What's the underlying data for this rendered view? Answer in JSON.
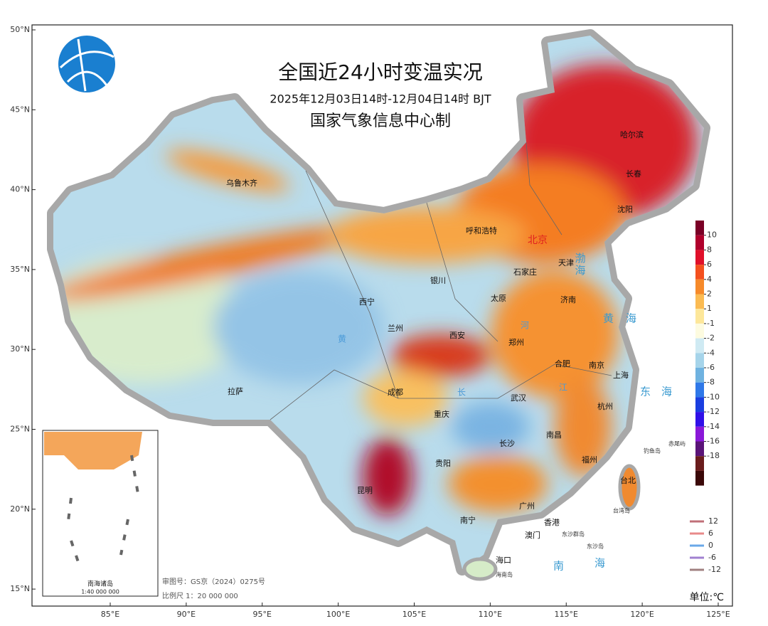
{
  "map": {
    "title": "全国近24小时变温实况",
    "subtitle": "2025年12月03日14时-12月04日14时 BJT",
    "producer": "国家气象信息中心制",
    "lat_ticks": [
      {
        "value": 50,
        "label": "50°N"
      },
      {
        "value": 45,
        "label": "45°N"
      },
      {
        "value": 40,
        "label": "40°N"
      },
      {
        "value": 35,
        "label": "35°N"
      },
      {
        "value": 30,
        "label": "30°N"
      },
      {
        "value": 25,
        "label": "25°N"
      },
      {
        "value": 20,
        "label": "20°N"
      },
      {
        "value": 15,
        "label": "15°N"
      }
    ],
    "lon_ticks": [
      {
        "value": 85,
        "label": "85°E"
      },
      {
        "value": 90,
        "label": "90°E"
      },
      {
        "value": 95,
        "label": "95°E"
      },
      {
        "value": 100,
        "label": "100°E"
      },
      {
        "value": 105,
        "label": "105°E"
      },
      {
        "value": 110,
        "label": "110°E"
      },
      {
        "value": 115,
        "label": "115°E"
      },
      {
        "value": 120,
        "label": "120°E"
      },
      {
        "value": 125,
        "label": "125°E"
      }
    ],
    "places": [
      "哈尔滨",
      "长春",
      "沈阳",
      "乌鲁木齐",
      "呼和浩特",
      "北京",
      "天津",
      "石家庄",
      "银川",
      "太原",
      "济南",
      "西宁",
      "兰州",
      "西安",
      "郑州",
      "合肥",
      "南京",
      "上海",
      "拉萨",
      "成都",
      "武汉",
      "杭州",
      "重庆",
      "南昌",
      "长沙",
      "福州",
      "贵阳",
      "台北",
      "昆明",
      "广州",
      "南宁",
      "香港",
      "澳门",
      "海口",
      "海南岛",
      "钓鱼岛",
      "赤尾屿",
      "台湾岛",
      "东沙群岛",
      "东沙岛"
    ],
    "seas": [
      "渤海",
      "黄",
      "海",
      "东",
      "海",
      "南",
      "海"
    ],
    "rivers": [
      "黄",
      "河",
      "长",
      "江"
    ],
    "inset_title": "南海诸岛",
    "inset_scale": "1:40 000 000",
    "review_no": "审图号：GS京（2024）0275号",
    "scale": "比例尺 1：20 000 000",
    "unit": "单位:℃",
    "color_scale": {
      "ticks": [
        10,
        8,
        6,
        4,
        2,
        1,
        -1,
        -2,
        -4,
        -6,
        -8,
        -10,
        -12,
        -14,
        -16,
        -18
      ],
      "colors": [
        "#7a0026",
        "#b0002c",
        "#e0102a",
        "#f4501e",
        "#f68a2a",
        "#fbbb52",
        "#fde79a",
        "#fdfbe0",
        "#cfeaf3",
        "#a6d4ea",
        "#6fb2e0",
        "#2f78e8",
        "#1a3ee0",
        "#3010e8",
        "#8a18d8",
        "#5a1478",
        "#6a1c1c",
        "#3a0808"
      ]
    },
    "contour_legend": [
      {
        "value": 12,
        "color": "#c07078"
      },
      {
        "value": 6,
        "color": "#e88a8a"
      },
      {
        "value": 0,
        "color": "#6aa8e8"
      },
      {
        "value": -6,
        "color": "#a080d0"
      },
      {
        "value": -12,
        "color": "#a08080"
      }
    ]
  }
}
